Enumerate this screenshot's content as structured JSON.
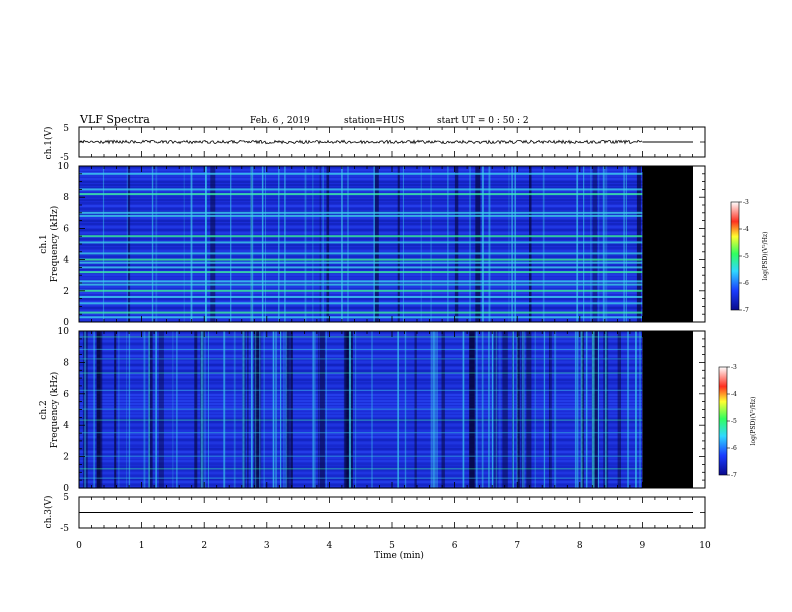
{
  "header": {
    "title": "VLF Spectra",
    "date": "Feb. 6 , 2019",
    "station": "station=HUS",
    "start": "start UT =  0 : 50 : 2"
  },
  "chart_data": [
    {
      "type": "line",
      "panel": "ch1-waveform",
      "ylabel": "ch.1(V)",
      "ylim": [
        -5,
        5
      ],
      "yticks": [
        "5",
        "-5"
      ],
      "x": [
        0,
        9
      ],
      "values": [
        0,
        0
      ],
      "note_visible": "noisy trace near 0 V until about 9 min, flat afterwards",
      "color": "#000000"
    },
    {
      "type": "heatmap",
      "panel": "ch1-spectrogram",
      "ylabel": "ch.1\nFrequency (kHz)",
      "xlim": [
        0,
        10
      ],
      "ylim": [
        0,
        10
      ],
      "yticks": [
        "0",
        "2",
        "4",
        "6",
        "8",
        "10"
      ],
      "data_end_min": 9.0,
      "bands_khz": [
        0.3,
        0.6,
        1.2,
        1.6,
        2.0,
        2.4,
        2.6,
        3.2,
        3.5,
        3.8,
        4.0,
        4.4,
        5.1,
        5.5,
        6.8,
        7.0,
        8.2,
        8.5,
        9.5
      ],
      "colorbar": {
        "label": "log(PSD)(V²/Hz)",
        "min": -7,
        "max": -3,
        "ticks": [
          "-3",
          "-4",
          "-5",
          "-6",
          "-7"
        ]
      }
    },
    {
      "type": "heatmap",
      "panel": "ch2-spectrogram",
      "ylabel": "ch.2\nFrequency (kHz)",
      "xlim": [
        0,
        10
      ],
      "ylim": [
        0,
        10
      ],
      "yticks": [
        "0",
        "2",
        "4",
        "6",
        "8",
        "10"
      ],
      "data_end_min": 9.0,
      "bands_khz": [
        0.6,
        1.2,
        2.0,
        3.5,
        4.3,
        5.0,
        6.2,
        7.3,
        8.2,
        8.8,
        9.6
      ],
      "colorbar": {
        "label": "log(PSD)(V²/Hz)",
        "min": -7,
        "max": -3,
        "ticks": [
          "-3",
          "-4",
          "-5",
          "-6",
          "-7"
        ]
      }
    },
    {
      "type": "line",
      "panel": "ch3-waveform",
      "ylabel": "ch.3(V)",
      "ylim": [
        -5,
        5
      ],
      "yticks": [
        "5",
        "-5"
      ],
      "x": [
        0,
        10
      ],
      "values": [
        0,
        0
      ],
      "color": "#000000"
    }
  ],
  "xaxis": {
    "label": "Time (min)",
    "range": [
      0,
      10
    ],
    "ticks": [
      "0",
      "1",
      "2",
      "3",
      "4",
      "5",
      "6",
      "7",
      "8",
      "9",
      "10"
    ]
  },
  "colors": {
    "background_blue": "#1a2dd6",
    "nodata": "#000000",
    "band_green": "#3dff9a",
    "band_cyan": "#40d8f0"
  }
}
